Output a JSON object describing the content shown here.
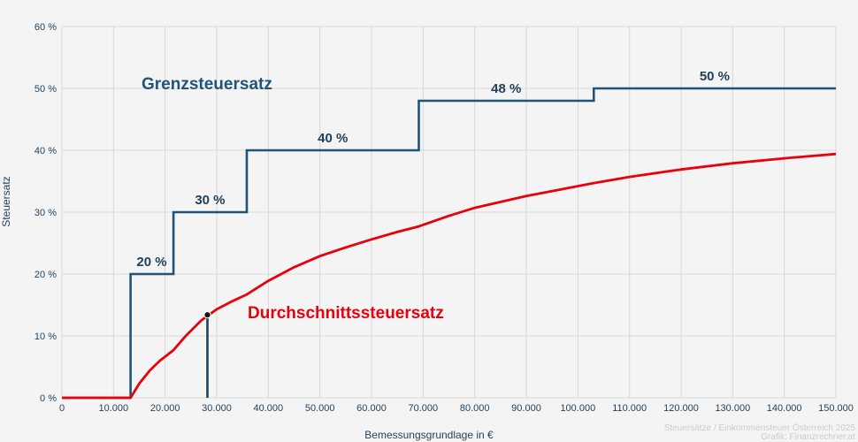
{
  "chart_data": {
    "type": "line",
    "xlabel": "Bemessungsgrundlage in €",
    "ylabel": "Steuersatz",
    "xlim": [
      0,
      150000
    ],
    "ylim": [
      0,
      60
    ],
    "grid": true,
    "x_ticks": [
      0,
      10000,
      20000,
      30000,
      40000,
      50000,
      60000,
      70000,
      80000,
      90000,
      100000,
      110000,
      120000,
      130000,
      140000,
      150000
    ],
    "x_tick_labels": [
      "0",
      "10.000",
      "20.000",
      "30.000",
      "40.000",
      "50.000",
      "60.000",
      "70.000",
      "80.000",
      "90.000",
      "100.000",
      "110.000",
      "120.000",
      "130.000",
      "140.000",
      "150.000"
    ],
    "y_ticks": [
      0,
      10,
      20,
      30,
      40,
      50,
      60
    ],
    "y_tick_labels": [
      "0 %",
      "10 %",
      "20 %",
      "30 %",
      "40 %",
      "50 %",
      "60 %"
    ],
    "series": [
      {
        "name": "Grenzsteuersatz",
        "color": "#1f5478",
        "step": true,
        "points": [
          [
            0,
            0
          ],
          [
            13308,
            0
          ],
          [
            13308,
            20
          ],
          [
            21617,
            20
          ],
          [
            21617,
            30
          ],
          [
            35836,
            30
          ],
          [
            35836,
            40
          ],
          [
            69166,
            40
          ],
          [
            69166,
            48
          ],
          [
            103072,
            48
          ],
          [
            103072,
            50
          ],
          [
            150000,
            50
          ]
        ],
        "step_labels": [
          {
            "text": "20 %",
            "x": 17400,
            "y": 20
          },
          {
            "text": "30 %",
            "x": 28700,
            "y": 30
          },
          {
            "text": "40 %",
            "x": 52500,
            "y": 40
          },
          {
            "text": "48 %",
            "x": 86100,
            "y": 48
          },
          {
            "text": "50 %",
            "x": 126500,
            "y": 50
          }
        ]
      },
      {
        "name": "Durchschnittssteuersatz",
        "color": "#e8000b",
        "points": [
          [
            0,
            0
          ],
          [
            13308,
            0
          ],
          [
            15000,
            2.3
          ],
          [
            17000,
            4.4
          ],
          [
            19000,
            6.0
          ],
          [
            21617,
            7.7
          ],
          [
            24000,
            10.0
          ],
          [
            27000,
            12.5
          ],
          [
            30000,
            14.3
          ],
          [
            33000,
            15.6
          ],
          [
            35836,
            16.7
          ],
          [
            40000,
            18.9
          ],
          [
            45000,
            21.1
          ],
          [
            50000,
            22.9
          ],
          [
            55000,
            24.3
          ],
          [
            60000,
            25.6
          ],
          [
            65000,
            26.8
          ],
          [
            69166,
            27.7
          ],
          [
            75000,
            29.4
          ],
          [
            80000,
            30.7
          ],
          [
            90000,
            32.6
          ],
          [
            103072,
            34.7
          ],
          [
            110000,
            35.7
          ],
          [
            120000,
            36.9
          ],
          [
            130000,
            37.9
          ],
          [
            140000,
            38.7
          ],
          [
            150000,
            39.4
          ]
        ]
      }
    ],
    "marker": {
      "x": 28200,
      "y": 13.4
    },
    "annotations": [
      {
        "text": "Grenzsteuersatz",
        "color": "#1f5478"
      },
      {
        "text": "Durchschnittssteuersatz",
        "color": "#e8000b"
      }
    ]
  },
  "credits": {
    "line1": "Steuersätze / Einkommensteuer Österreich 2025",
    "line2": "Grafik: Finanzrechner.at"
  }
}
